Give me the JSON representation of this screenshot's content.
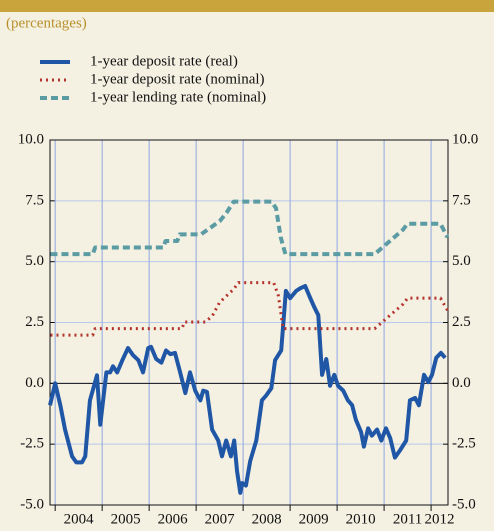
{
  "chart_data": {
    "type": "line",
    "subtitle": "(percentages)",
    "xlim": [
      2003.89,
      2012.36
    ],
    "xticks": [
      2004,
      2005,
      2006,
      2007,
      2008,
      2009,
      2010,
      2011,
      2012
    ],
    "ylim": [
      -5,
      10
    ],
    "yticks": [
      {
        "value": -5,
        "label": "-5.0"
      },
      {
        "value": -2.5,
        "label": "-2.5"
      },
      {
        "value": 0,
        "label": "0.0"
      },
      2.5,
      {
        "value": 5,
        "label": "5.0"
      },
      7.5,
      {
        "value": 10,
        "label": "10.0"
      }
    ],
    "grid": true,
    "series": [
      {
        "name": "1-year deposit rate (real)",
        "color": "#1f56a5",
        "style": "solid",
        "x": [
          2003.89,
          2004.0,
          2004.11,
          2004.21,
          2004.36,
          2004.45,
          2004.57,
          2004.64,
          2004.74,
          2004.89,
          2004.96,
          2005.09,
          2005.17,
          2005.23,
          2005.32,
          2005.43,
          2005.55,
          2005.66,
          2005.77,
          2005.87,
          2005.98,
          2006.04,
          2006.15,
          2006.26,
          2006.36,
          2006.45,
          2006.55,
          2006.66,
          2006.77,
          2006.87,
          2006.98,
          2007.09,
          2007.15,
          2007.23,
          2007.34,
          2007.47,
          2007.55,
          2007.64,
          2007.74,
          2007.81,
          2007.87,
          2007.94,
          2007.98,
          2008.06,
          2008.15,
          2008.28,
          2008.4,
          2008.49,
          2008.6,
          2008.68,
          2008.81,
          2008.91,
          2009.0,
          2009.13,
          2009.21,
          2009.32,
          2009.43,
          2009.51,
          2009.6,
          2009.68,
          2009.77,
          2009.85,
          2009.94,
          2010.02,
          2010.13,
          2010.23,
          2010.32,
          2010.4,
          2010.51,
          2010.57,
          2010.66,
          2010.74,
          2010.85,
          2010.94,
          2011.04,
          2011.13,
          2011.23,
          2011.34,
          2011.47,
          2011.55,
          2011.66,
          2011.74,
          2011.85,
          2011.94,
          2012.02,
          2012.11,
          2012.21,
          2012.3
        ],
        "values": [
          -0.9,
          0,
          -0.9,
          -1.9,
          -3.0,
          -3.25,
          -3.25,
          -3.0,
          -0.7,
          0.33,
          -1.7,
          0.45,
          0.45,
          0.7,
          0.45,
          0.95,
          1.45,
          1.15,
          0.95,
          0.45,
          1.45,
          1.5,
          1.0,
          0.85,
          1.35,
          1.2,
          1.25,
          0.45,
          -0.4,
          0.45,
          -0.3,
          -0.7,
          -0.3,
          -0.35,
          -1.9,
          -2.35,
          -3.0,
          -2.35,
          -3.0,
          -2.35,
          -3.6,
          -4.5,
          -4.1,
          -4.2,
          -3.2,
          -2.35,
          -0.7,
          -0.5,
          -0.2,
          0.95,
          1.35,
          3.8,
          3.5,
          3.8,
          3.9,
          4.0,
          3.5,
          3.15,
          2.8,
          0.35,
          1.0,
          -0.1,
          0.35,
          -0.1,
          -0.3,
          -0.7,
          -0.9,
          -1.5,
          -2.0,
          -2.6,
          -1.85,
          -2.15,
          -1.9,
          -2.35,
          -1.85,
          -2.25,
          -3.05,
          -2.75,
          -2.35,
          -0.7,
          -0.6,
          -0.9,
          0.35,
          0.05,
          0.35,
          1.05,
          1.25,
          1.05
        ]
      },
      {
        "name": "1-year deposit rate (nominal)",
        "color": "#b3322b",
        "style": "dotted",
        "x": [
          2003.9,
          2004.8,
          2004.85,
          2006.7,
          2006.75,
          2007.2,
          2007.35,
          2007.5,
          2007.65,
          2007.8,
          2007.9,
          2008.65,
          2008.75,
          2008.85,
          2010.8,
          2010.95,
          2011.1,
          2011.25,
          2011.4,
          2011.5,
          2012.2,
          2012.35
        ],
        "values": [
          1.98,
          1.98,
          2.25,
          2.25,
          2.52,
          2.52,
          2.79,
          3.33,
          3.6,
          3.87,
          4.14,
          4.14,
          3.6,
          2.25,
          2.25,
          2.5,
          2.75,
          3.0,
          3.25,
          3.5,
          3.5,
          3.0
        ]
      },
      {
        "name": "1-year lending rate (nominal)",
        "color": "#5b9ba3",
        "style": "dashed",
        "x": [
          2003.9,
          2004.8,
          2004.85,
          2006.3,
          2006.35,
          2006.6,
          2006.65,
          2007.1,
          2007.3,
          2007.5,
          2007.65,
          2007.8,
          2008.6,
          2008.7,
          2008.8,
          2008.9,
          2010.8,
          2010.95,
          2011.1,
          2011.25,
          2011.4,
          2011.5,
          2012.2,
          2012.35
        ],
        "values": [
          5.31,
          5.31,
          5.58,
          5.58,
          5.85,
          5.85,
          6.12,
          6.12,
          6.39,
          6.66,
          7.02,
          7.47,
          7.47,
          7.2,
          6.0,
          5.31,
          5.31,
          5.56,
          5.81,
          6.06,
          6.31,
          6.56,
          6.56,
          6.0
        ]
      }
    ]
  }
}
